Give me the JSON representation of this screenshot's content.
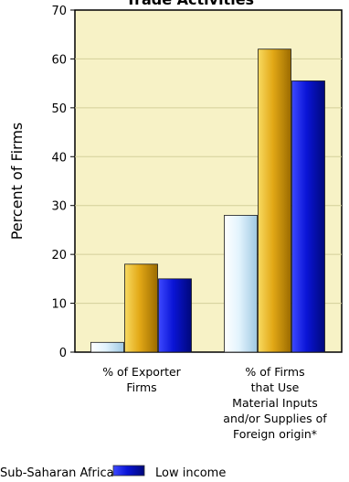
{
  "chart_data": {
    "type": "bar",
    "title": "Trade Activities",
    "ylabel": "Percent of Firms",
    "xlabel": "",
    "ylim": [
      0,
      70
    ],
    "yticks": [
      0,
      10,
      20,
      30,
      40,
      50,
      60,
      70
    ],
    "grid": true,
    "categories": [
      [
        "% of Exporter",
        "Firms"
      ],
      [
        "% of Firms",
        "that Use",
        "Material Inputs",
        "and/or Supplies of",
        "Foreign origin*"
      ]
    ],
    "series": [
      {
        "name": "",
        "values": [
          2,
          28
        ]
      },
      {
        "name": "Sub-Saharan Africa",
        "values": [
          18,
          62
        ]
      },
      {
        "name": "Low income",
        "values": [
          15,
          55.5
        ]
      }
    ],
    "legend_position": "bottom",
    "colors": {
      "plot_background": "#f7f2c6",
      "series_0": "#d6ecf9",
      "series_1": "#e2a816",
      "series_2": "#0a14d6",
      "grid": "#d4cf9a"
    }
  }
}
